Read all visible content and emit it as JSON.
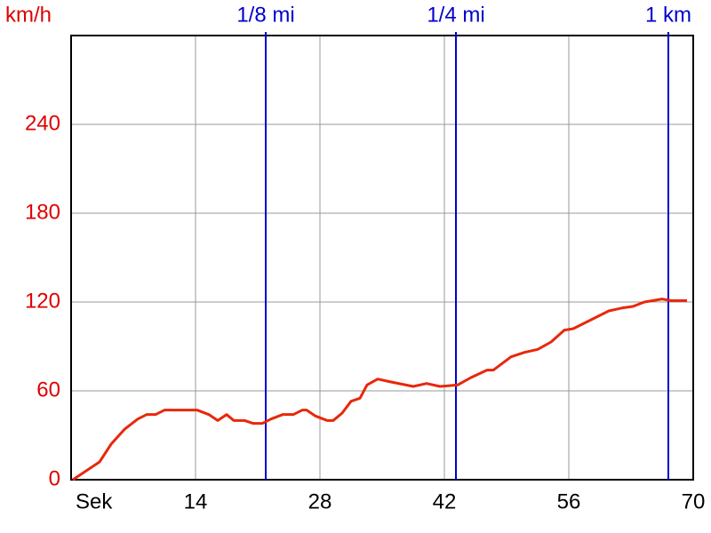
{
  "chart_data": {
    "type": "line",
    "x_label": "Sek",
    "y_label": "km/h",
    "xlim": [
      0,
      70
    ],
    "ylim": [
      0,
      300
    ],
    "xticks": [
      {
        "value": 0,
        "label": "Sek"
      },
      14,
      28,
      42,
      56,
      70
    ],
    "yticks": [
      0,
      60,
      120,
      180,
      240
    ],
    "grid": true,
    "series": [
      {
        "name": "km/h",
        "color": "#e8280a",
        "x": [
          0.2,
          3.2,
          4.5,
          6,
          7.5,
          8.5,
          9.5,
          10.5,
          14.2,
          15.5,
          16.5,
          17.5,
          18.3,
          19.5,
          20.5,
          21.5,
          22.5,
          23.8,
          25,
          26,
          26.5,
          27.5,
          28.8,
          29.5,
          30.5,
          31.5,
          32.5,
          33.3,
          34.5,
          36,
          38.5,
          40,
          41.5,
          43.5,
          45,
          46.8,
          47.5,
          49.5,
          51,
          52.5,
          54,
          55.5,
          56.5,
          58.5,
          60.5,
          62,
          63.2,
          64.5,
          66.5,
          67.5,
          69.3
        ],
        "values": [
          0,
          12,
          24,
          34,
          41,
          44,
          44,
          47,
          47,
          44,
          40,
          44,
          40,
          40,
          38,
          38,
          41,
          44,
          44,
          47,
          47,
          43,
          40,
          40,
          45,
          53,
          55,
          64,
          68,
          66,
          63,
          65,
          63,
          64,
          69,
          74,
          74,
          83,
          86,
          88,
          93,
          101,
          102,
          108,
          114,
          116,
          117,
          120,
          122,
          121,
          121
        ]
      }
    ],
    "markers": [
      {
        "x": 21.9,
        "label": "1/8 mi"
      },
      {
        "x": 43.3,
        "label": "1/4 mi"
      },
      {
        "x": 67.2,
        "label": "1 km"
      }
    ],
    "marker_color": "#0000cc",
    "label_color": "#e00000"
  }
}
